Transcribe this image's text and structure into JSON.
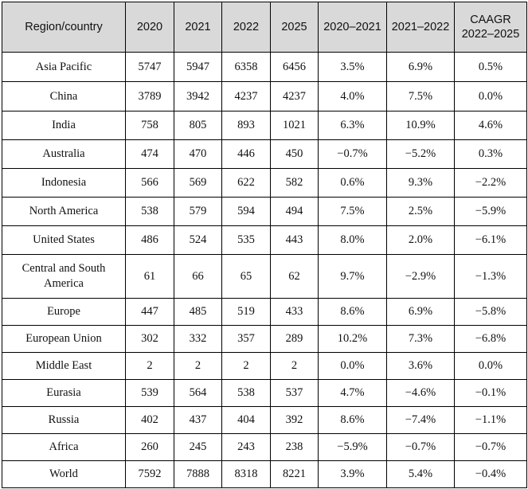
{
  "table": {
    "headers": [
      "Region/country",
      "2020",
      "2021",
      "2022",
      "2025",
      "2020–2021",
      "2021–2022",
      "CAAGR 2022–2025"
    ],
    "rows": [
      [
        "Asia Pacific",
        "5747",
        "5947",
        "6358",
        "6456",
        "3.5%",
        "6.9%",
        "0.5%"
      ],
      [
        "China",
        "3789",
        "3942",
        "4237",
        "4237",
        "4.0%",
        "7.5%",
        "0.0%"
      ],
      [
        "India",
        "758",
        "805",
        "893",
        "1021",
        "6.3%",
        "10.9%",
        "4.6%"
      ],
      [
        "Australia",
        "474",
        "470",
        "446",
        "450",
        "−0.7%",
        "−5.2%",
        "0.3%"
      ],
      [
        "Indonesia",
        "566",
        "569",
        "622",
        "582",
        "0.6%",
        "9.3%",
        "−2.2%"
      ],
      [
        "North America",
        "538",
        "579",
        "594",
        "494",
        "7.5%",
        "2.5%",
        "−5.9%"
      ],
      [
        "United  States",
        "486",
        "524",
        "535",
        "443",
        "8.0%",
        "2.0%",
        "−6.1%"
      ],
      [
        "Central and South America",
        "61",
        "66",
        "65",
        "62",
        "9.7%",
        "−2.9%",
        "−1.3%"
      ],
      [
        "Europe",
        "447",
        "485",
        "519",
        "433",
        "8.6%",
        "6.9%",
        "−5.8%"
      ],
      [
        "European Union",
        "302",
        "332",
        "357",
        "289",
        "10.2%",
        "7.3%",
        "−6.8%"
      ],
      [
        "Middle East",
        "2",
        "2",
        "2",
        "2",
        "0.0%",
        "3.6%",
        "0.0%"
      ],
      [
        "Eurasia",
        "539",
        "564",
        "538",
        "537",
        "4.7%",
        "−4.6%",
        "−0.1%"
      ],
      [
        "Russia",
        "402",
        "437",
        "404",
        "392",
        "8.6%",
        "−7.4%",
        "−1.1%"
      ],
      [
        "Africa",
        "260",
        "245",
        "243",
        "238",
        "−5.9%",
        "−0.7%",
        "−0.7%"
      ],
      [
        "World",
        "7592",
        "7888",
        "8318",
        "8221",
        "3.9%",
        "5.4%",
        "−0.4%"
      ]
    ]
  }
}
